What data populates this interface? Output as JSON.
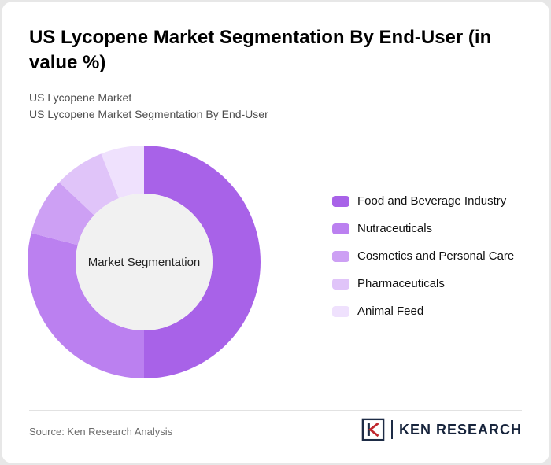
{
  "page": {
    "title": "US Lycopene Market Segmentation By End-User (in value %)",
    "subtitle_line1": "US Lycopene Market",
    "subtitle_line2": "US Lycopene Market Segmentation By End-User"
  },
  "chart_data": {
    "type": "pie",
    "donut": true,
    "title": "US Lycopene Market Segmentation By End-User (in value %)",
    "center_label": "Market Segmentation",
    "start_angle_deg": 0,
    "direction": "clockwise",
    "legend_position": "right",
    "center_fill": "#f1f1f1",
    "segments": [
      {
        "label": "Food and Beverage Industry",
        "value": 50,
        "color": "#a862e8"
      },
      {
        "label": "Nutraceuticals",
        "value": 29,
        "color": "#bb80f0"
      },
      {
        "label": "Cosmetics and Personal Care",
        "value": 8,
        "color": "#cda0f4"
      },
      {
        "label": "Pharmaceuticals",
        "value": 7,
        "color": "#e0c4f9"
      },
      {
        "label": "Animal Feed",
        "value": 6,
        "color": "#efe1fd"
      }
    ]
  },
  "footer": {
    "source": "Source: Ken Research Analysis",
    "brand": "KEN RESEARCH"
  }
}
